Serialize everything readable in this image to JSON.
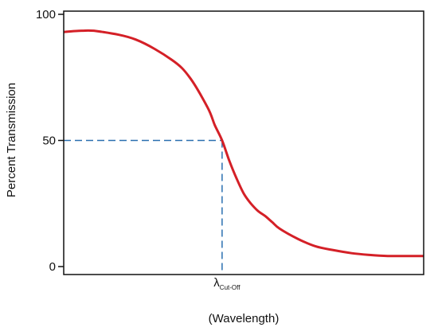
{
  "chart_data": {
    "type": "line",
    "title": "",
    "xlabel": "(Wavelength)",
    "ylabel": "Percent Transmission",
    "ylim": [
      0,
      100
    ],
    "y_ticks": [
      "100",
      "50",
      "0"
    ],
    "y_tick_values": [
      100,
      50,
      0
    ],
    "x_range": [
      0,
      100
    ],
    "grid": false,
    "colors": {
      "curve": "#d42027",
      "reference": "#2a6fb0",
      "axis": "#111111"
    },
    "series": [
      {
        "x": [
          0,
          5,
          10,
          20,
          30,
          35,
          40,
          42,
          44,
          46,
          48,
          50,
          52,
          54,
          56,
          58,
          60,
          65,
          70,
          75,
          80,
          85,
          90,
          95,
          100
        ],
        "y": [
          93,
          93.5,
          93.2,
          90,
          82,
          75,
          63,
          56,
          50,
          42,
          35,
          29,
          25,
          22,
          20,
          17.5,
          15,
          11,
          8,
          6.5,
          5.3,
          4.6,
          4.2,
          4.2,
          4.2
        ]
      }
    ],
    "annotations": {
      "reference_y": 50,
      "cutoff_x": 44,
      "cutoff_symbol": "λ",
      "cutoff_subscript": "Cut-Off"
    }
  }
}
